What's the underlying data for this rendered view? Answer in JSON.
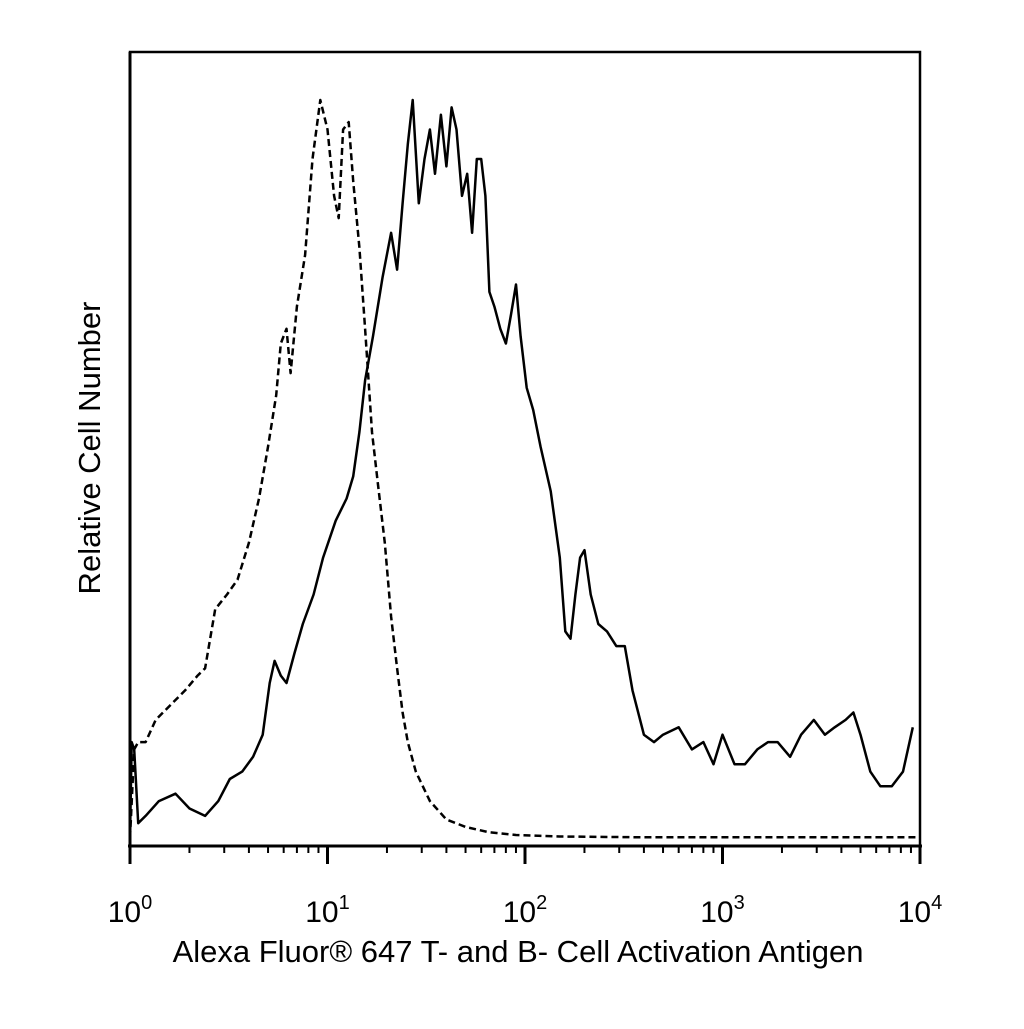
{
  "chart_data": {
    "type": "line",
    "title": "",
    "xlabel": "Alexa Fluor® 647 T- and B- Cell Activation Antigen",
    "ylabel": "Relative Cell Number",
    "xscale": "log",
    "xlim": [
      1,
      10000
    ],
    "ylim": [
      0,
      1
    ],
    "grid": false,
    "legend": "none",
    "x_ticks": [
      {
        "value": 1,
        "base": "10",
        "exp": "0"
      },
      {
        "value": 10,
        "base": "10",
        "exp": "1"
      },
      {
        "value": 100,
        "base": "10",
        "exp": "2"
      },
      {
        "value": 1000,
        "base": "10",
        "exp": "3"
      },
      {
        "value": 10000,
        "base": "10",
        "exp": "4"
      }
    ],
    "series": [
      {
        "style": "solid",
        "color": "#000000",
        "points": [
          [
            1.0,
            0.0
          ],
          [
            1.02,
            0.13
          ],
          [
            1.05,
            0.12
          ],
          [
            1.1,
            0.02
          ],
          [
            1.2,
            0.03
          ],
          [
            1.4,
            0.05
          ],
          [
            1.7,
            0.06
          ],
          [
            2.0,
            0.04
          ],
          [
            2.4,
            0.03
          ],
          [
            2.8,
            0.05
          ],
          [
            3.2,
            0.08
          ],
          [
            3.7,
            0.09
          ],
          [
            4.2,
            0.11
          ],
          [
            4.7,
            0.14
          ],
          [
            5.1,
            0.21
          ],
          [
            5.4,
            0.24
          ],
          [
            5.8,
            0.22
          ],
          [
            6.2,
            0.21
          ],
          [
            6.8,
            0.25
          ],
          [
            7.5,
            0.29
          ],
          [
            8.5,
            0.33
          ],
          [
            9.5,
            0.38
          ],
          [
            11.0,
            0.43
          ],
          [
            12.5,
            0.46
          ],
          [
            13.5,
            0.49
          ],
          [
            14.5,
            0.55
          ],
          [
            15.5,
            0.62
          ],
          [
            17.0,
            0.68
          ],
          [
            19.0,
            0.76
          ],
          [
            21.0,
            0.82
          ],
          [
            22.5,
            0.77
          ],
          [
            24.0,
            0.86
          ],
          [
            25.5,
            0.94
          ],
          [
            27.0,
            1.0
          ],
          [
            29.0,
            0.86
          ],
          [
            31.0,
            0.92
          ],
          [
            33.0,
            0.96
          ],
          [
            35.0,
            0.9
          ],
          [
            37.5,
            0.98
          ],
          [
            40.0,
            0.91
          ],
          [
            42.5,
            0.99
          ],
          [
            45.0,
            0.96
          ],
          [
            48.0,
            0.87
          ],
          [
            51.0,
            0.9
          ],
          [
            54.0,
            0.82
          ],
          [
            57.0,
            0.92
          ],
          [
            60.0,
            0.92
          ],
          [
            63.0,
            0.87
          ],
          [
            66.0,
            0.74
          ],
          [
            70.0,
            0.72
          ],
          [
            75.0,
            0.69
          ],
          [
            80.0,
            0.67
          ],
          [
            85.0,
            0.71
          ],
          [
            90.0,
            0.75
          ],
          [
            95.0,
            0.68
          ],
          [
            102.0,
            0.61
          ],
          [
            110.0,
            0.58
          ],
          [
            120.0,
            0.53
          ],
          [
            135.0,
            0.47
          ],
          [
            150.0,
            0.38
          ],
          [
            160.0,
            0.28
          ],
          [
            170.0,
            0.27
          ],
          [
            180.0,
            0.33
          ],
          [
            190.0,
            0.38
          ],
          [
            200.0,
            0.39
          ],
          [
            215.0,
            0.33
          ],
          [
            235.0,
            0.29
          ],
          [
            260.0,
            0.28
          ],
          [
            290.0,
            0.26
          ],
          [
            320.0,
            0.26
          ],
          [
            350.0,
            0.2
          ],
          [
            400.0,
            0.14
          ],
          [
            450.0,
            0.13
          ],
          [
            500.0,
            0.14
          ],
          [
            600.0,
            0.15
          ],
          [
            700.0,
            0.12
          ],
          [
            800.0,
            0.13
          ],
          [
            900.0,
            0.1
          ],
          [
            1000.0,
            0.14
          ],
          [
            1150.0,
            0.1
          ],
          [
            1300.0,
            0.1
          ],
          [
            1500.0,
            0.12
          ],
          [
            1700.0,
            0.13
          ],
          [
            1900.0,
            0.13
          ],
          [
            2200.0,
            0.11
          ],
          [
            2500.0,
            0.14
          ],
          [
            2900.0,
            0.16
          ],
          [
            3300.0,
            0.14
          ],
          [
            3700.0,
            0.15
          ],
          [
            4200.0,
            0.16
          ],
          [
            4600.0,
            0.17
          ],
          [
            5000.0,
            0.14
          ],
          [
            5600.0,
            0.09
          ],
          [
            6300.0,
            0.07
          ],
          [
            7200.0,
            0.07
          ],
          [
            8200.0,
            0.09
          ],
          [
            9200.0,
            0.15
          ]
        ]
      },
      {
        "style": "dashed",
        "color": "#000000",
        "points": [
          [
            1.0,
            0.0
          ],
          [
            1.05,
            0.12
          ],
          [
            1.1,
            0.13
          ],
          [
            1.2,
            0.13
          ],
          [
            1.35,
            0.16
          ],
          [
            1.6,
            0.18
          ],
          [
            1.9,
            0.2
          ],
          [
            2.2,
            0.22
          ],
          [
            2.4,
            0.23
          ],
          [
            2.7,
            0.31
          ],
          [
            3.1,
            0.33
          ],
          [
            3.5,
            0.35
          ],
          [
            4.0,
            0.4
          ],
          [
            4.5,
            0.46
          ],
          [
            5.0,
            0.53
          ],
          [
            5.5,
            0.6
          ],
          [
            5.8,
            0.67
          ],
          [
            6.2,
            0.69
          ],
          [
            6.5,
            0.63
          ],
          [
            7.0,
            0.72
          ],
          [
            7.7,
            0.79
          ],
          [
            8.4,
            0.92
          ],
          [
            9.2,
            1.0
          ],
          [
            10.0,
            0.96
          ],
          [
            10.8,
            0.87
          ],
          [
            11.4,
            0.84
          ],
          [
            12.0,
            0.96
          ],
          [
            12.8,
            0.97
          ],
          [
            13.5,
            0.89
          ],
          [
            14.5,
            0.8
          ],
          [
            15.5,
            0.69
          ],
          [
            16.8,
            0.55
          ],
          [
            18.0,
            0.48
          ],
          [
            19.5,
            0.4
          ],
          [
            21.0,
            0.3
          ],
          [
            22.5,
            0.23
          ],
          [
            24.0,
            0.17
          ],
          [
            25.5,
            0.13
          ],
          [
            28.0,
            0.09
          ],
          [
            33.0,
            0.05
          ],
          [
            40.0,
            0.025
          ],
          [
            50.0,
            0.015
          ],
          [
            65.0,
            0.008
          ],
          [
            90.0,
            0.004
          ],
          [
            150.0,
            0.002
          ],
          [
            400.0,
            0.001
          ],
          [
            2000.0,
            0.001
          ],
          [
            9500.0,
            0.001
          ]
        ]
      }
    ]
  }
}
